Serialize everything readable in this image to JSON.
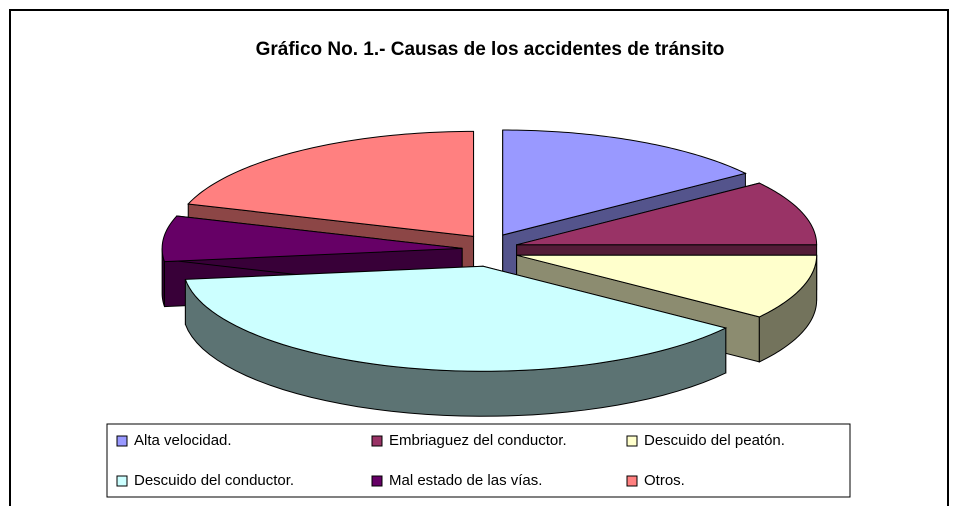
{
  "chart_data": {
    "type": "pie3d",
    "title": "Gráfico No. 1.- Causas de los accidentes de tránsito",
    "categories": [
      "Alta velocidad.",
      "Embriaguez del conductor.",
      "Descuido del peatón.",
      "Descuido del conductor.",
      "Mal estado de las vías.",
      "Otros."
    ],
    "values": [
      15,
      10,
      10,
      38,
      7,
      20
    ],
    "colors": [
      "#9999ff",
      "#993366",
      "#ffffcc",
      "#ccffff",
      "#660066",
      "#ff8080"
    ],
    "legend": "bottom"
  }
}
